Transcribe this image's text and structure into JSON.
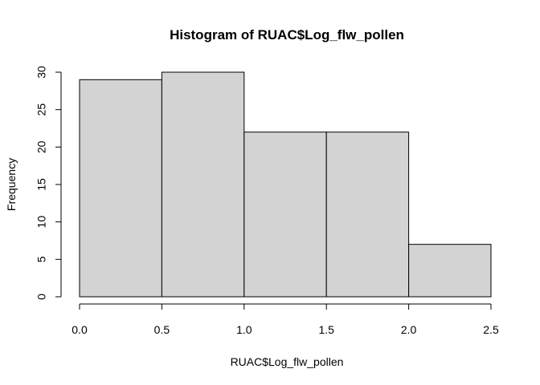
{
  "chart_data": {
    "type": "bar",
    "title": "Histogram of RUAC$Log_flw_pollen",
    "xlabel": "RUAC$Log_flw_pollen",
    "ylabel": "Frequency",
    "bins": [
      {
        "from": 0.0,
        "to": 0.5,
        "count": 29
      },
      {
        "from": 0.5,
        "to": 1.0,
        "count": 30
      },
      {
        "from": 1.0,
        "to": 1.5,
        "count": 22
      },
      {
        "from": 1.5,
        "to": 2.0,
        "count": 22
      },
      {
        "from": 2.0,
        "to": 2.5,
        "count": 7
      }
    ],
    "xlim": [
      0,
      2.5
    ],
    "ylim": [
      0,
      30
    ],
    "xticks": [
      "0.0",
      "0.5",
      "1.0",
      "1.5",
      "2.0",
      "2.5"
    ],
    "yticks": [
      "0",
      "5",
      "10",
      "15",
      "20",
      "25",
      "30"
    ],
    "bar_fill": "#d3d3d3",
    "bar_stroke": "#000000",
    "grid": false,
    "legend": "none"
  }
}
